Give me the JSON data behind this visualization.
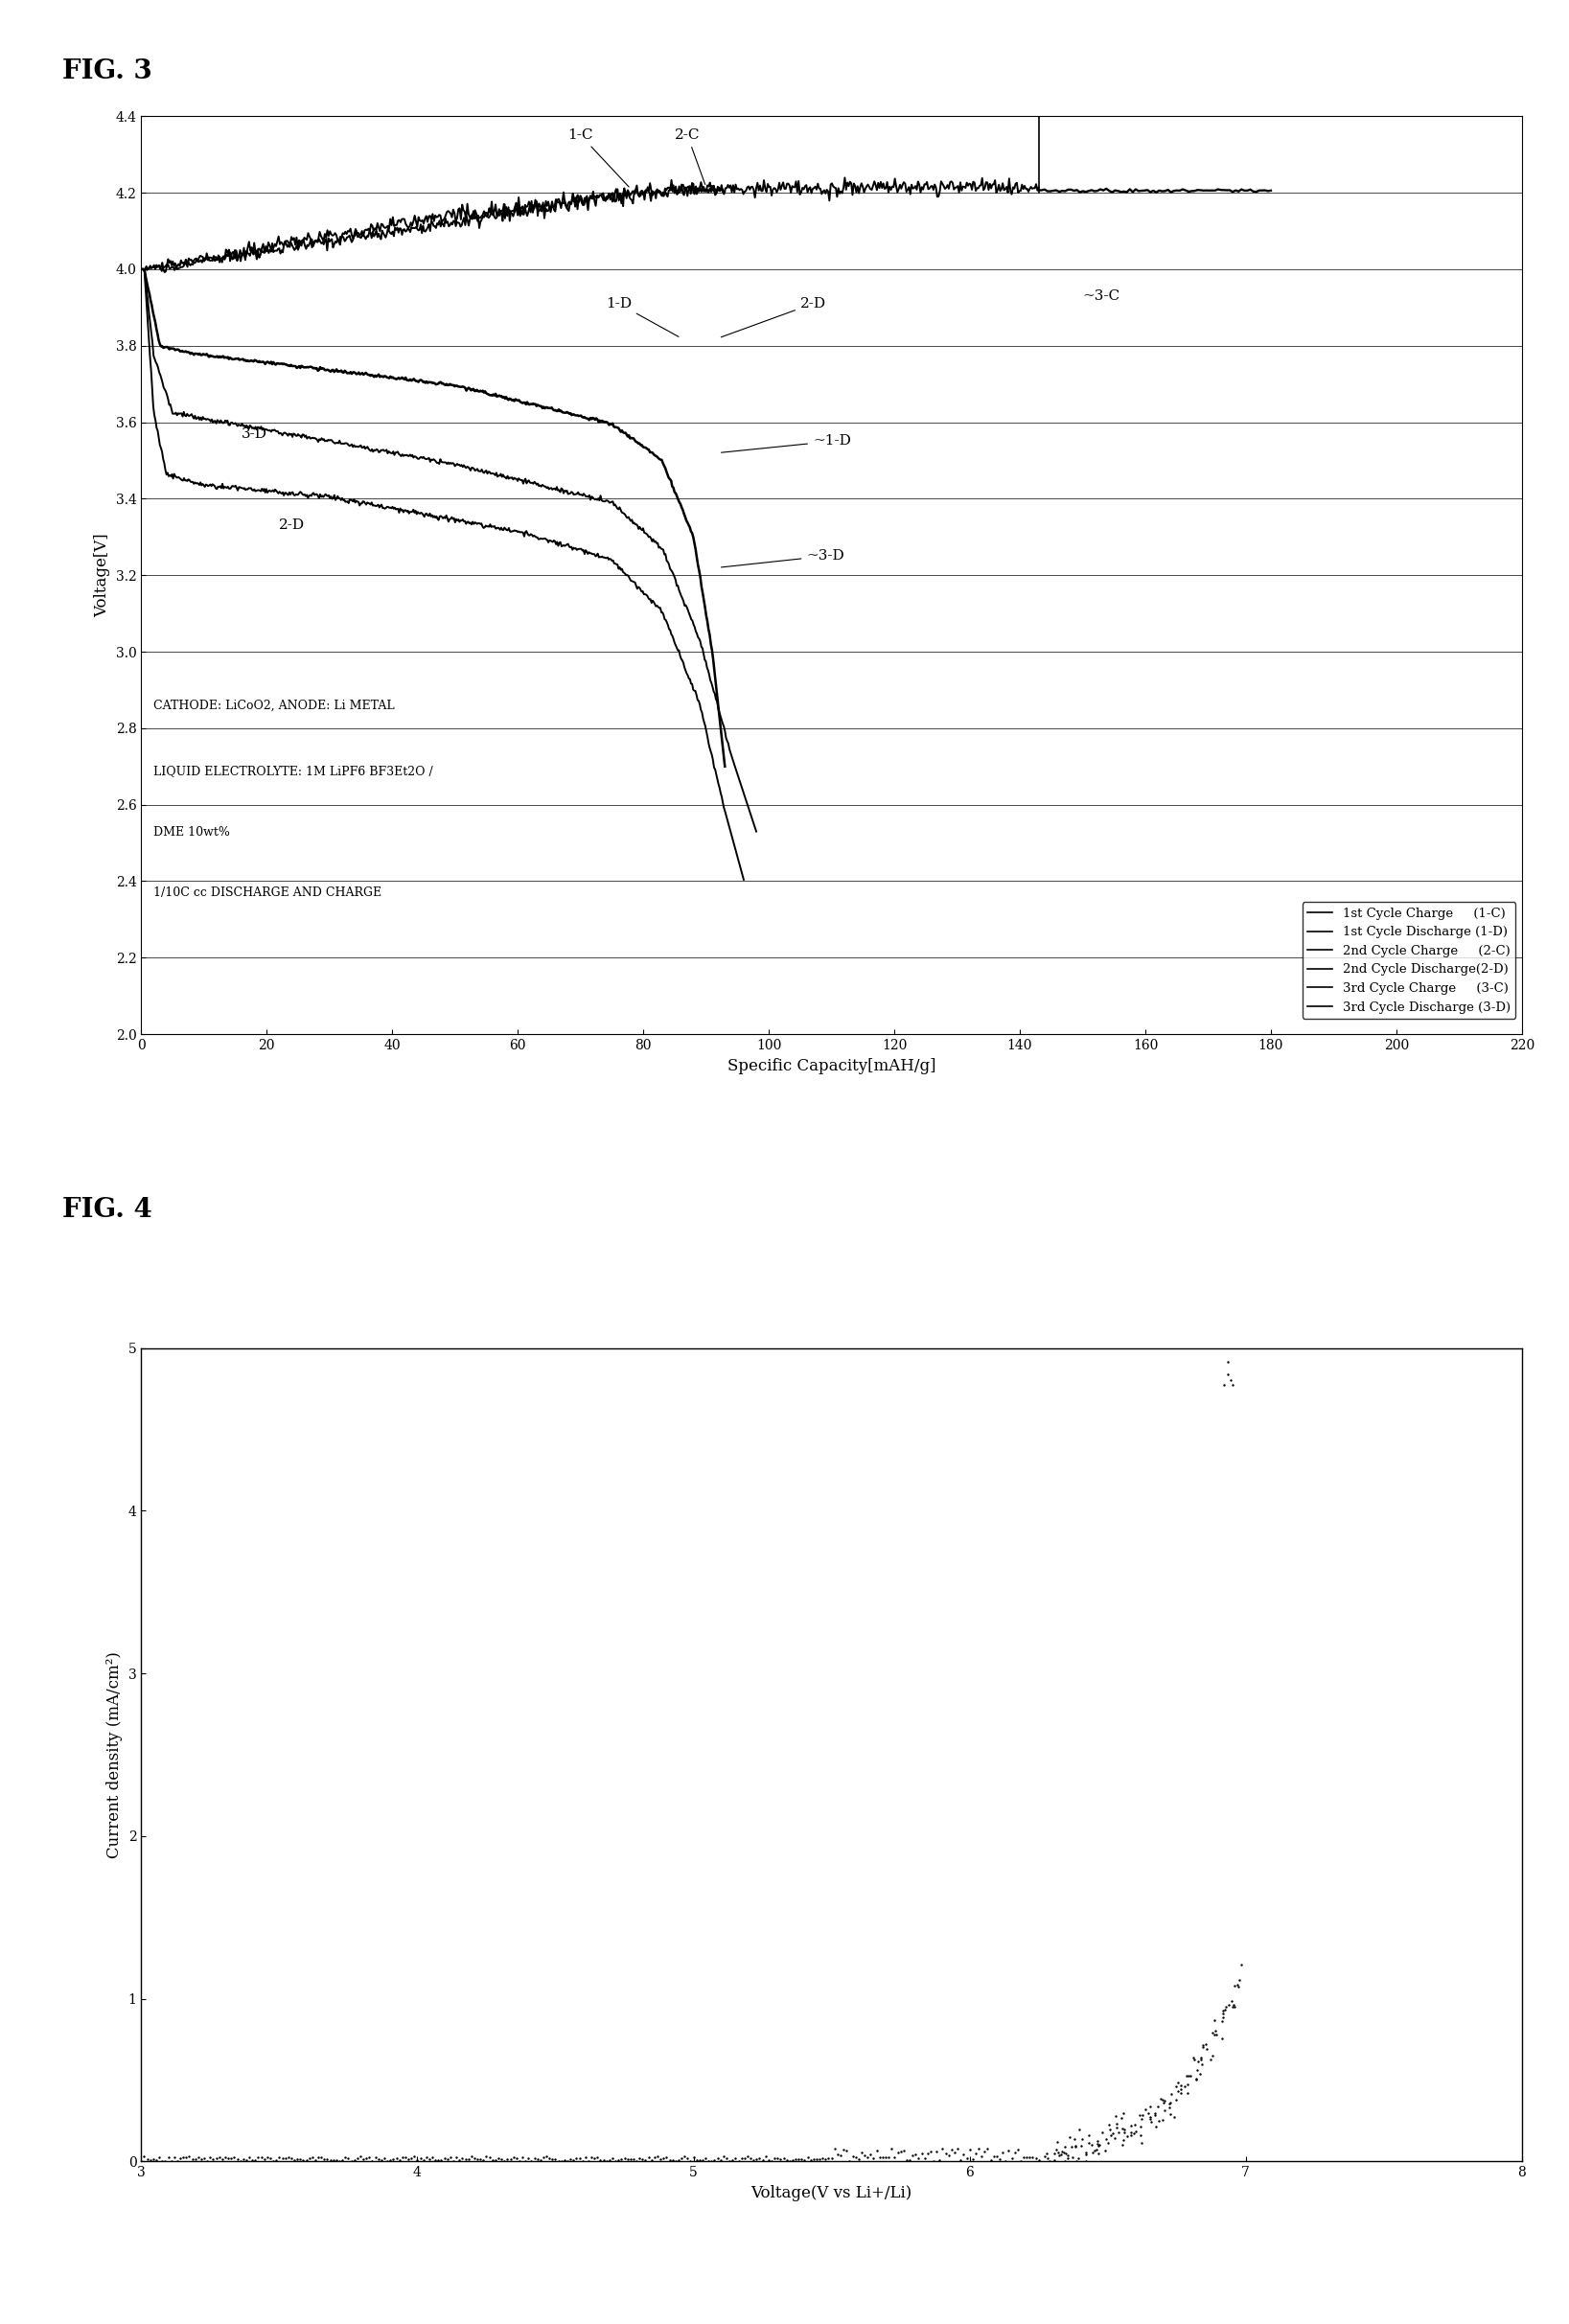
{
  "fig3": {
    "xlabel": "Specific Capacity[mAH/g]",
    "ylabel": "Voltage[V]",
    "xlim": [
      0,
      220
    ],
    "ylim": [
      2.0,
      4.4
    ],
    "xticks": [
      0,
      20,
      40,
      60,
      80,
      100,
      120,
      140,
      160,
      180,
      200,
      220
    ],
    "yticks": [
      2.0,
      2.2,
      2.4,
      2.6,
      2.8,
      3.0,
      3.2,
      3.4,
      3.6,
      3.8,
      4.0,
      4.2,
      4.4
    ],
    "annotation_text_line1": "CATHODE: LiCoO2, ANODE: Li METAL",
    "annotation_text_line2": "LIQUID ELECTROLYTE: 1M LiPF6 BF3Et2O /",
    "annotation_text_line3": "DME 10wt%",
    "annotation_text_line4": "1/10C cc DISCHARGE AND CHARGE",
    "legend_entries": [
      "1st Cycle Charge     (1-C)",
      "1st Cycle Discharge (1-D)",
      "2nd Cycle Charge     (2-C)",
      "2nd Cycle Discharge(2-D)",
      "3rd Cycle Charge     (3-C)",
      "3rd Cycle Discharge (3-D)"
    ]
  },
  "fig4": {
    "xlabel": "Voltage(V vs Li+/Li)",
    "ylabel": "Current density (mA/cm²)",
    "xlim": [
      3,
      8
    ],
    "ylim": [
      0,
      5
    ],
    "xticks": [
      3,
      4,
      5,
      6,
      7,
      8
    ],
    "yticks": [
      0,
      1,
      2,
      3,
      4,
      5
    ]
  }
}
